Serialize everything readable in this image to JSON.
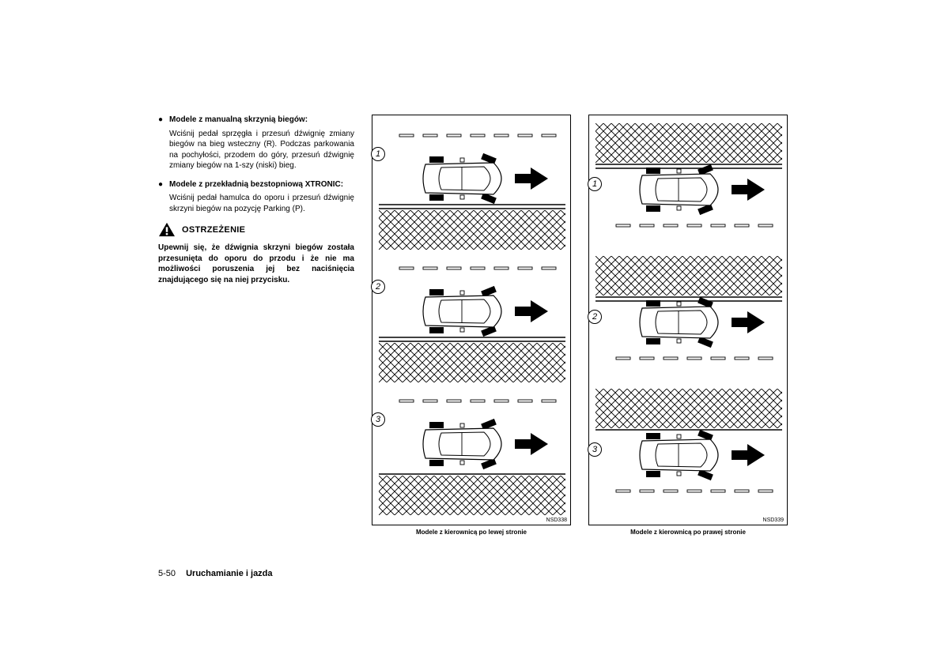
{
  "text_column": {
    "bullets": [
      {
        "title": "Modele z manualną skrzynią biegów:",
        "body": "Wciśnij pedał sprzęgła i przesuń dźwignię zmiany biegów na bieg wsteczny (R). Podczas parkowania na pochyłości, przodem do góry, przesuń dźwignię zmiany biegów na 1-szy (niski) bieg."
      },
      {
        "title": "Modele z przekładnią bezstopniową XTRONIC:",
        "body": "Wciśnij pedał hamulca do oporu i przesuń dźwignię skrzyni biegów na pozycję Parking (P)."
      }
    ],
    "warning_label": "OSTRZEŻENIE",
    "warning_body": "Upewnij się, że dźwignia skrzyni biegów została przesunięta do oporu do przodu i że nie ma możliwości poruszenia jej bez naciśnięcia znajdującego się na niej przycisku."
  },
  "figure_left": {
    "code": "NSD338",
    "caption": "Modele z kierownicą po lewej stronie",
    "panels": [
      {
        "num": "1",
        "curb_side": "bottom",
        "wheel_turn": "right"
      },
      {
        "num": "2",
        "curb_side": "bottom",
        "wheel_turn": "left"
      },
      {
        "num": "3",
        "curb_side": "bottom",
        "wheel_turn": "left",
        "no_curb": true
      }
    ]
  },
  "figure_right": {
    "code": "NSD339",
    "caption": "Modele z kierownicą po prawej stronie",
    "panels": [
      {
        "num": "1",
        "curb_side": "top",
        "wheel_turn": "left"
      },
      {
        "num": "2",
        "curb_side": "top",
        "wheel_turn": "right"
      },
      {
        "num": "3",
        "curb_side": "top",
        "wheel_turn": "right",
        "no_curb": true
      }
    ]
  },
  "footer": {
    "page": "5-50",
    "section": "Uruchamianie i jazda"
  },
  "colors": {
    "text": "#000000",
    "bg": "#ffffff"
  }
}
